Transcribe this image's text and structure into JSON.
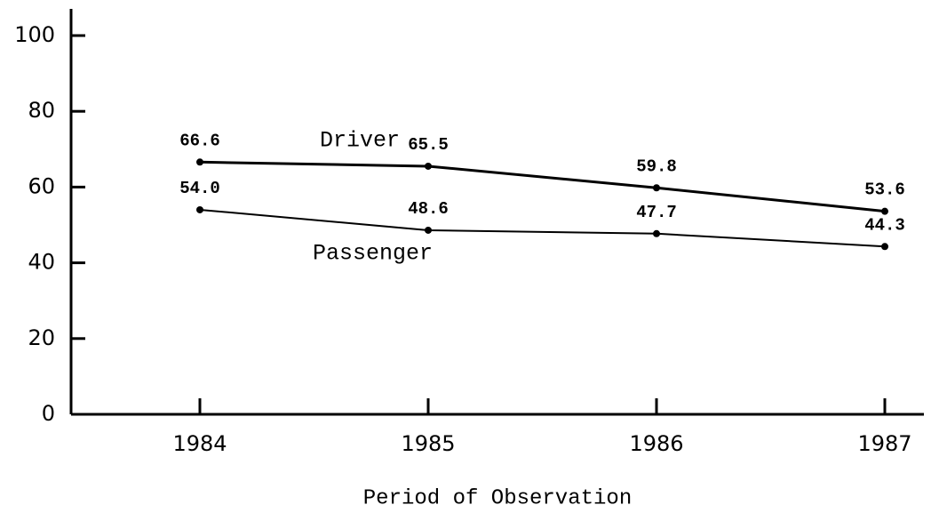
{
  "chart_data": {
    "type": "line",
    "x_label": "Period of Observation",
    "categories": [
      "1984",
      "1985",
      "1986",
      "1987"
    ],
    "series": [
      {
        "name": "Driver",
        "color": "#000000",
        "values": [
          66.6,
          65.5,
          59.8,
          53.6
        ],
        "value_labels": [
          "66.6",
          "65.5",
          "59.8",
          "53.6"
        ]
      },
      {
        "name": "Passenger",
        "color": "#000000",
        "values": [
          54,
          48.6,
          47.7,
          44.3
        ],
        "value_labels": [
          "54.0",
          "48.6",
          "47.7",
          "44.3"
        ]
      }
    ],
    "ylim": [
      0,
      100
    ],
    "yticks": [
      0,
      20,
      40,
      60,
      80,
      100
    ],
    "grid": false
  }
}
